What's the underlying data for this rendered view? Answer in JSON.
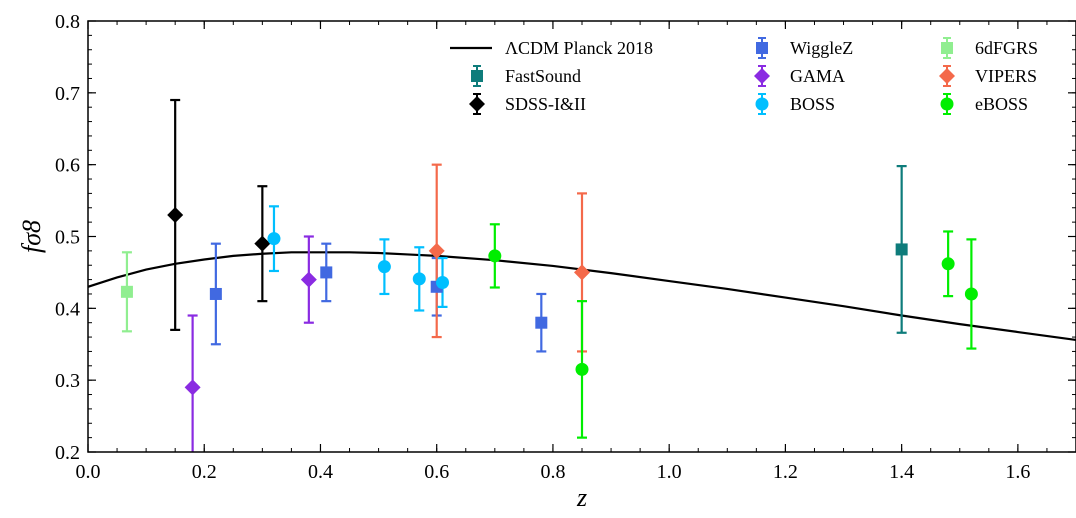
{
  "chart_data": {
    "type": "scatter",
    "title": "",
    "xlabel": "z",
    "ylabel": "fσ8",
    "xlim": [
      0.0,
      1.7
    ],
    "ylim": [
      0.2,
      0.8
    ],
    "grid": false,
    "legend_position": "top-right",
    "x_ticks": [
      0.0,
      0.2,
      0.4,
      0.6,
      0.8,
      1.0,
      1.2,
      1.4,
      1.6
    ],
    "x_tick_labels": [
      "0.0",
      "0.2",
      "0.4",
      "0.6",
      "0.8",
      "1.0",
      "1.2",
      "1.4",
      "1.6"
    ],
    "y_ticks": [
      0.2,
      0.3,
      0.4,
      0.5,
      0.6,
      0.7,
      0.8
    ],
    "y_tick_labels": [
      "0.2",
      "0.3",
      "0.4",
      "0.5",
      "0.6",
      "0.7",
      "0.8"
    ],
    "model": {
      "name": "ΛCDM Planck 2018",
      "color": "#000000",
      "x": [
        0.0,
        0.05,
        0.1,
        0.15,
        0.2,
        0.25,
        0.3,
        0.35,
        0.4,
        0.45,
        0.5,
        0.55,
        0.6,
        0.7,
        0.8,
        0.9,
        1.0,
        1.1,
        1.2,
        1.3,
        1.4,
        1.5,
        1.6,
        1.7
      ],
      "y": [
        0.43,
        0.443,
        0.454,
        0.462,
        0.468,
        0.473,
        0.476,
        0.478,
        0.478,
        0.478,
        0.477,
        0.475,
        0.473,
        0.467,
        0.459,
        0.449,
        0.438,
        0.427,
        0.415,
        0.403,
        0.39,
        0.378,
        0.367,
        0.356
      ]
    },
    "series": [
      {
        "name": "WiggleZ",
        "color": "#4169e1",
        "marker": "square",
        "points": [
          {
            "x": 0.22,
            "y": 0.42,
            "err": 0.07
          },
          {
            "x": 0.41,
            "y": 0.45,
            "err": 0.04
          },
          {
            "x": 0.6,
            "y": 0.43,
            "err": 0.04
          },
          {
            "x": 0.78,
            "y": 0.38,
            "err": 0.04
          }
        ]
      },
      {
        "name": "6dFGRS",
        "color": "#90ee90",
        "marker": "square",
        "points": [
          {
            "x": 0.067,
            "y": 0.423,
            "err": 0.055
          }
        ]
      },
      {
        "name": "FastSound",
        "color": "#0e7c7b",
        "marker": "square",
        "points": [
          {
            "x": 1.4,
            "y": 0.482,
            "err": 0.116
          }
        ]
      },
      {
        "name": "GAMA",
        "color": "#8a2be2",
        "marker": "diamond",
        "points": [
          {
            "x": 0.18,
            "y": 0.29,
            "err": 0.1
          },
          {
            "x": 0.38,
            "y": 0.44,
            "err": 0.06
          }
        ]
      },
      {
        "name": "VIPERS",
        "color": "#f4694a",
        "marker": "diamond",
        "points": [
          {
            "x": 0.6,
            "y": 0.48,
            "err": 0.12
          },
          {
            "x": 0.85,
            "y": 0.45,
            "err": 0.11
          }
        ]
      },
      {
        "name": "SDSS-I&II",
        "color": "#000000",
        "marker": "diamond",
        "points": [
          {
            "x": 0.15,
            "y": 0.53,
            "err": 0.16
          },
          {
            "x": 0.3,
            "y": 0.49,
            "err": 0.08
          }
        ]
      },
      {
        "name": "BOSS",
        "color": "#00bfff",
        "marker": "circle",
        "points": [
          {
            "x": 0.32,
            "y": 0.497,
            "err": 0.045
          },
          {
            "x": 0.51,
            "y": 0.458,
            "err": 0.038
          },
          {
            "x": 0.57,
            "y": 0.441,
            "err": 0.044
          },
          {
            "x": 0.61,
            "y": 0.436,
            "err": 0.034
          }
        ]
      },
      {
        "name": "eBOSS",
        "color": "#00ee00",
        "marker": "circle",
        "points": [
          {
            "x": 0.7,
            "y": 0.473,
            "err": 0.044
          },
          {
            "x": 0.85,
            "y": 0.315,
            "err": 0.095
          },
          {
            "x": 1.48,
            "y": 0.462,
            "err": 0.045
          },
          {
            "x": 1.52,
            "y": 0.42,
            "err": 0.076
          }
        ]
      }
    ],
    "legend_order": [
      "model",
      "FastSound",
      "SDSS-I&II",
      "WiggleZ",
      "GAMA",
      "BOSS",
      "6dFGRS",
      "VIPERS",
      "eBOSS"
    ]
  }
}
